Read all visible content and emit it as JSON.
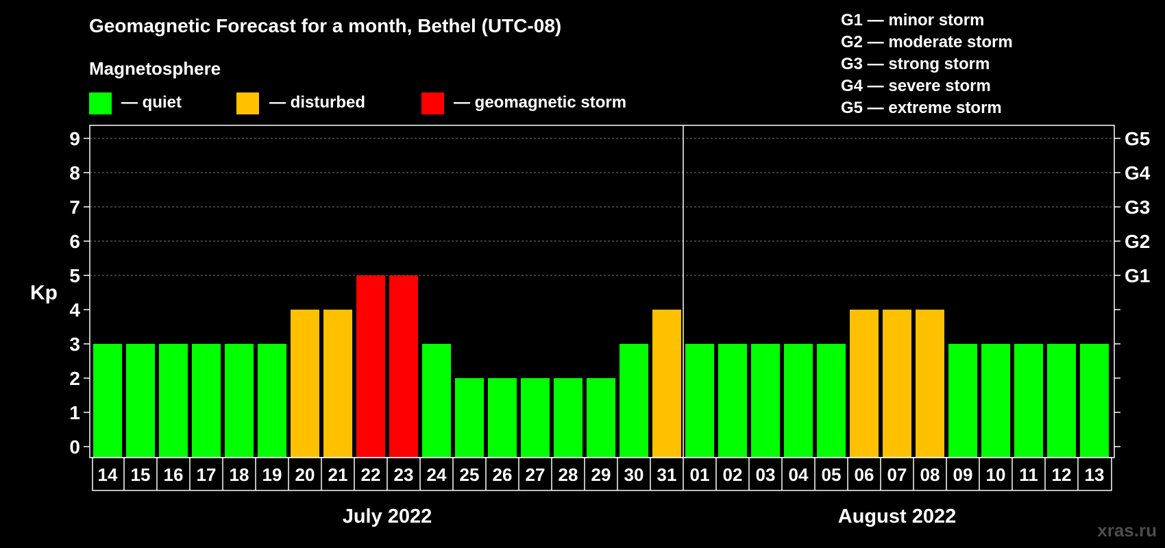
{
  "chart_data": {
    "type": "bar",
    "title": "Geomagnetic Forecast for a month, Bethel (UTC-08)",
    "legend_title": "Magnetosphere",
    "legend": [
      {
        "label": "— quiet",
        "color": "#00ff00"
      },
      {
        "label": "— disturbed",
        "color": "#ffc000"
      },
      {
        "label": "— geomagnetic storm",
        "color": "#ff0000"
      }
    ],
    "storm_scale": [
      "G1 — minor storm",
      "G2 — moderate storm",
      "G3 — strong storm",
      "G4 — severe storm",
      "G5 — extreme storm"
    ],
    "ylabel": "Kp",
    "ylim": [
      0,
      9
    ],
    "yticks": [
      "0",
      "1",
      "2",
      "3",
      "4",
      "5",
      "6",
      "7",
      "8",
      "9"
    ],
    "right_ticks": [
      {
        "kp": 5,
        "label": "G1"
      },
      {
        "kp": 6,
        "label": "G2"
      },
      {
        "kp": 7,
        "label": "G3"
      },
      {
        "kp": 8,
        "label": "G4"
      },
      {
        "kp": 9,
        "label": "G5"
      }
    ],
    "categories": [
      "14",
      "15",
      "16",
      "17",
      "18",
      "19",
      "20",
      "21",
      "22",
      "23",
      "24",
      "25",
      "26",
      "27",
      "28",
      "29",
      "30",
      "31",
      "01",
      "02",
      "03",
      "04",
      "05",
      "06",
      "07",
      "08",
      "09",
      "10",
      "11",
      "12",
      "13"
    ],
    "values": [
      3,
      3,
      3,
      3,
      3,
      3,
      4,
      4,
      5,
      5,
      3,
      2,
      2,
      2,
      2,
      2,
      3,
      4,
      3,
      3,
      3,
      3,
      3,
      4,
      4,
      4,
      3,
      3,
      3,
      3,
      3
    ],
    "months": [
      {
        "label": "July 2022",
        "start": 0,
        "end": 17
      },
      {
        "label": "August 2022",
        "start": 18,
        "end": 30
      }
    ],
    "colors": {
      "quiet": "#00ff00",
      "disturbed": "#ffc000",
      "storm": "#ff0000"
    }
  },
  "watermark": "xras.ru"
}
